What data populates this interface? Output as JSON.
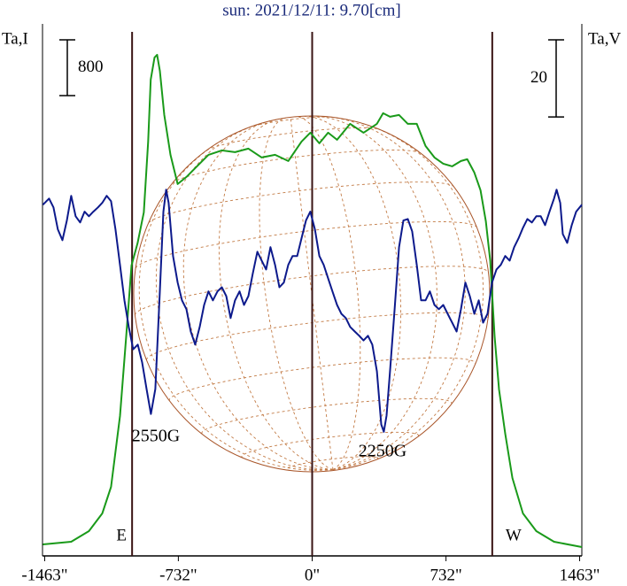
{
  "chart_data": {
    "type": "line",
    "title": "sun: 2021/12/11: 9.70[cm]",
    "y_label": "Ta,I",
    "y2_label": "Ta,V",
    "y_scale_bar": 800,
    "y2_scale_bar": 20,
    "xlim": [
      -1475,
      1475
    ],
    "ylim": [
      0,
      7630
    ],
    "y2lim": [
      -58,
      80
    ],
    "xticks": [
      {
        "value": -1463,
        "label": "-1463\""
      },
      {
        "value": -732,
        "label": "-732\""
      },
      {
        "value": 0,
        "label": "0\""
      },
      {
        "value": 732,
        "label": "732\""
      },
      {
        "value": 1463,
        "label": "1463\""
      }
    ],
    "markers": [
      {
        "x": -985,
        "label": "E"
      },
      {
        "x": 0
      },
      {
        "x": 985,
        "label": "W"
      }
    ],
    "annotations": [
      "2550G",
      "2250G"
    ],
    "series": [
      {
        "color": "#1a9a1a",
        "axis": "y",
        "x": [
          -1473,
          -1318,
          -1221,
          -1148,
          -1100,
          -1051,
          -1017,
          -988,
          -955,
          -921,
          -897,
          -883,
          -862,
          -848,
          -833,
          -809,
          -775,
          -736,
          -688,
          -640,
          -567,
          -494,
          -422,
          -349,
          -276,
          -203,
          -131,
          -58,
          -10,
          39,
          87,
          136,
          208,
          281,
          354,
          388,
          426,
          475,
          523,
          572,
          620,
          669,
          717,
          766,
          814,
          848,
          887,
          921,
          950,
          974,
          998,
          1022,
          1056,
          1095,
          1153,
          1226,
          1323,
          1475
        ],
        "values": [
          165,
          203,
          356,
          610,
          990,
          2006,
          3149,
          4165,
          4483,
          4927,
          5943,
          6832,
          7149,
          7187,
          6959,
          6324,
          5752,
          5333,
          5435,
          5562,
          5752,
          5816,
          5790,
          5841,
          5714,
          5752,
          5663,
          5943,
          6070,
          5917,
          6070,
          5968,
          6197,
          6070,
          6197,
          6349,
          6298,
          6324,
          6197,
          6197,
          5879,
          5714,
          5625,
          5587,
          5663,
          5689,
          5498,
          5244,
          4800,
          4229,
          3149,
          2387,
          1752,
          1117,
          610,
          356,
          203,
          127
        ]
      },
      {
        "color": "#0d1a8c",
        "axis": "y2",
        "x": [
          -1473,
          -1439,
          -1415,
          -1391,
          -1366,
          -1342,
          -1318,
          -1294,
          -1269,
          -1245,
          -1221,
          -1197,
          -1172,
          -1148,
          -1124,
          -1100,
          -1076,
          -1051,
          -1027,
          -1003,
          -979,
          -954,
          -930,
          -906,
          -882,
          -858,
          -833,
          -814,
          -799,
          -785,
          -761,
          -736,
          -712,
          -688,
          -664,
          -640,
          -615,
          -591,
          -567,
          -543,
          -518,
          -494,
          -470,
          -446,
          -422,
          -397,
          -373,
          -349,
          -325,
          -300,
          -276,
          -252,
          -228,
          -203,
          -179,
          -155,
          -131,
          -107,
          -82,
          -58,
          -34,
          -10,
          15,
          39,
          63,
          87,
          111,
          136,
          160,
          184,
          208,
          233,
          257,
          281,
          305,
          329,
          354,
          378,
          392,
          407,
          426,
          451,
          475,
          499,
          523,
          547,
          572,
          596,
          620,
          644,
          669,
          693,
          717,
          741,
          766,
          790,
          814,
          838,
          862,
          887,
          911,
          935,
          959,
          984,
          1008,
          1032,
          1056,
          1080,
          1105,
          1129,
          1153,
          1177,
          1202,
          1226,
          1250,
          1274,
          1298,
          1323,
          1337,
          1357,
          1371,
          1395,
          1420,
          1444,
          1475
        ],
        "values": [
          33.1,
          34.7,
          32.4,
          26.7,
          23.9,
          29.0,
          35.4,
          30.1,
          28.5,
          31.3,
          30.1,
          31.3,
          32.4,
          33.6,
          35.4,
          34.0,
          26.7,
          17.5,
          8.3,
          1.4,
          -4.4,
          -3.2,
          -7.8,
          -14.7,
          -21.2,
          -14.7,
          10.6,
          31.3,
          37.0,
          33.6,
          19.8,
          12.9,
          8.3,
          6.0,
          0.2,
          -3.2,
          1.4,
          7.1,
          10.6,
          8.3,
          10.6,
          11.7,
          9.4,
          3.7,
          8.3,
          10.6,
          7.1,
          9.4,
          15.2,
          20.9,
          18.6,
          16.3,
          22.1,
          17.5,
          11.7,
          12.9,
          17.5,
          19.8,
          19.8,
          24.4,
          29.0,
          31.3,
          26.7,
          19.8,
          17.5,
          14.0,
          10.6,
          7.1,
          4.8,
          3.7,
          1.4,
          0.2,
          -0.9,
          -2.1,
          -0.9,
          -3.2,
          -10.1,
          -23.9,
          -25.8,
          -21.6,
          -10.1,
          6.0,
          22.1,
          29.0,
          29.4,
          26.2,
          17.5,
          8.3,
          8.3,
          10.6,
          7.1,
          6.0,
          7.1,
          4.8,
          2.5,
          0.2,
          6.0,
          12.9,
          9.4,
          4.8,
          8.3,
          2.5,
          4.8,
          12.9,
          16.3,
          17.5,
          19.8,
          18.6,
          22.1,
          24.4,
          27.1,
          29.4,
          28.5,
          30.1,
          30.1,
          27.8,
          31.3,
          34.7,
          37.0,
          33.6,
          25.5,
          23.2,
          27.8,
          31.3,
          33.1
        ]
      }
    ]
  }
}
